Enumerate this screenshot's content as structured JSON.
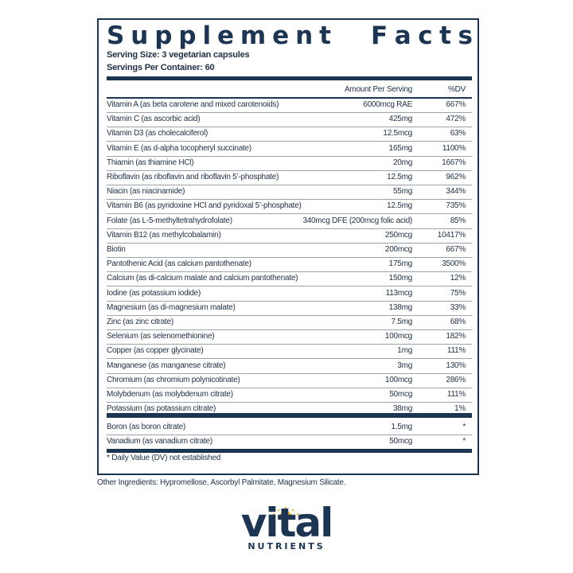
{
  "title_words": [
    "Supplement",
    "Facts"
  ],
  "serving_size": "Serving Size: 3 vegetarian capsules",
  "servings_per_container": "Servings Per Container: 60",
  "headers": {
    "amount": "Amount Per Serving",
    "dv": "%DV"
  },
  "rows": [
    {
      "name": "Vitamin A (as beta carotene and mixed carotenoids)",
      "amount": "6000mcg RAE",
      "dv": "667%"
    },
    {
      "name": "Vitamin C (as ascorbic acid)",
      "amount": "425mg",
      "dv": "472%"
    },
    {
      "name": "Vitamin D3 (as cholecalciferol)",
      "amount": "12.5mcg",
      "dv": "63%"
    },
    {
      "name": "Vitamin E (as d-alpha tocopheryl succinate)",
      "amount": "165mg",
      "dv": "1100%"
    },
    {
      "name": "Thiamin (as thiamine HCl)",
      "amount": "20mg",
      "dv": "1667%"
    },
    {
      "name": "Riboflavin (as riboflavin and riboflavin 5’-phosphate)",
      "amount": "12.5mg",
      "dv": "962%"
    },
    {
      "name": "Niacin (as niacinamide)",
      "amount": "55mg",
      "dv": "344%"
    },
    {
      "name": "Vitamin B6 (as pyridoxine HCl and pyridoxal 5’-phosphate)",
      "amount": "12.5mg",
      "dv": "735%"
    },
    {
      "name": "Folate (as L-5-methyltetrahydrofolate)",
      "amount": "340mcg DFE (200mcg folic acid)",
      "dv": "85%"
    },
    {
      "name": "Vitamin B12 (as methylcobalamin)",
      "amount": "250mcg",
      "dv": "10417%"
    },
    {
      "name": "Biotin",
      "amount": "200mcg",
      "dv": "667%"
    },
    {
      "name": "Pantothenic Acid (as calcium pantothenate)",
      "amount": "175mg",
      "dv": "3500%"
    },
    {
      "name": "Calcium (as di-calcium malate and calcium pantothenate)",
      "amount": "150mg",
      "dv": "12%"
    },
    {
      "name": "Iodine (as potassium iodide)",
      "amount": "113mcg",
      "dv": "75%"
    },
    {
      "name": "Magnesium (as di-magnesium malate)",
      "amount": "138mg",
      "dv": "33%"
    },
    {
      "name": "Zinc (as zinc citrate)",
      "amount": "7.5mg",
      "dv": "68%"
    },
    {
      "name": "Selenium (as selenomethionine)",
      "amount": "100mcg",
      "dv": "182%"
    },
    {
      "name": "Copper (as copper glycinate)",
      "amount": "1mg",
      "dv": "111%"
    },
    {
      "name": "Manganese (as manganese citrate)",
      "amount": "3mg",
      "dv": "130%"
    },
    {
      "name": "Chromium (as chromium polynicotinate)",
      "amount": "100mcg",
      "dv": "286%"
    },
    {
      "name": "Molybdenum (as molybdenum citrate)",
      "amount": "50mcg",
      "dv": "111%"
    },
    {
      "name": "Potassium (as potassium citrate)",
      "amount": "38mg",
      "dv": "1%"
    }
  ],
  "rows2": [
    {
      "name": "Boron (as boron citrate)",
      "amount": "1.5mg",
      "dv": "*"
    },
    {
      "name": "Vanadium (as vanadium citrate)",
      "amount": "50mcg",
      "dv": "*"
    }
  ],
  "footnote": "* Daily Value (DV) not established",
  "other_ingredients": "Other Ingredients: Hypromellose, Ascorbyl Palmitate, Magnesium Silicate.",
  "logo": {
    "word": "vital",
    "sub": "NUTRIENTS"
  },
  "colors": {
    "navy": "#1c3553",
    "sun": "#f2b81c"
  }
}
